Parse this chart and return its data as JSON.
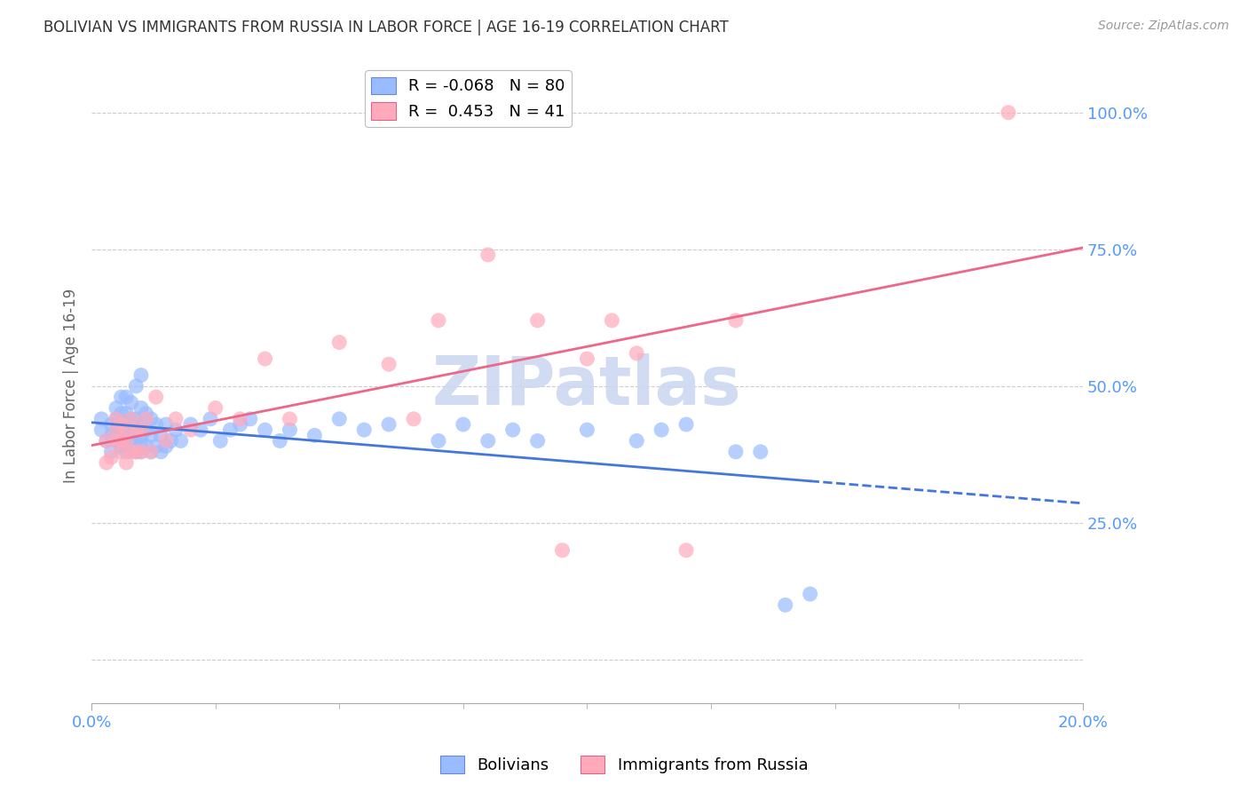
{
  "title": "BOLIVIAN VS IMMIGRANTS FROM RUSSIA IN LABOR FORCE | AGE 16-19 CORRELATION CHART",
  "source": "Source: ZipAtlas.com",
  "ylabel": "In Labor Force | Age 16-19",
  "xlabel": "",
  "xlim": [
    0.0,
    0.2
  ],
  "ylim": [
    -0.08,
    1.08
  ],
  "yticks": [
    0.0,
    0.25,
    0.5,
    0.75,
    1.0
  ],
  "ytick_labels": [
    "",
    "25.0%",
    "50.0%",
    "75.0%",
    "100.0%"
  ],
  "xticks": [
    0.0,
    0.2
  ],
  "xtick_labels": [
    "0.0%",
    "20.0%"
  ],
  "background_color": "#ffffff",
  "grid_color": "#cccccc",
  "title_color": "#333333",
  "axis_color": "#5599ff",
  "bolivians_color": "#99bbff",
  "russia_color": "#ffaabb",
  "trend_bolivia_color": "#4477dd",
  "trend_russia_color": "#ee6688",
  "watermark_color": "#ccd8f0",
  "bolivia_x": [
    0.002,
    0.002,
    0.003,
    0.004,
    0.004,
    0.004,
    0.005,
    0.005,
    0.005,
    0.005,
    0.005,
    0.006,
    0.006,
    0.006,
    0.006,
    0.006,
    0.007,
    0.007,
    0.007,
    0.007,
    0.007,
    0.007,
    0.008,
    0.008,
    0.008,
    0.008,
    0.008,
    0.009,
    0.009,
    0.009,
    0.009,
    0.009,
    0.01,
    0.01,
    0.01,
    0.01,
    0.01,
    0.01,
    0.011,
    0.011,
    0.011,
    0.012,
    0.012,
    0.012,
    0.013,
    0.013,
    0.014,
    0.014,
    0.015,
    0.015,
    0.016,
    0.017,
    0.018,
    0.02,
    0.022,
    0.024,
    0.026,
    0.028,
    0.03,
    0.032,
    0.035,
    0.038,
    0.04,
    0.045,
    0.05,
    0.055,
    0.06,
    0.07,
    0.075,
    0.08,
    0.085,
    0.09,
    0.1,
    0.11,
    0.115,
    0.12,
    0.13,
    0.135,
    0.14,
    0.145
  ],
  "bolivia_y": [
    0.42,
    0.44,
    0.4,
    0.38,
    0.41,
    0.43,
    0.4,
    0.41,
    0.42,
    0.44,
    0.46,
    0.39,
    0.41,
    0.43,
    0.45,
    0.48,
    0.38,
    0.4,
    0.41,
    0.43,
    0.45,
    0.48,
    0.39,
    0.4,
    0.42,
    0.44,
    0.47,
    0.38,
    0.4,
    0.42,
    0.44,
    0.5,
    0.38,
    0.4,
    0.41,
    0.43,
    0.46,
    0.52,
    0.39,
    0.42,
    0.45,
    0.38,
    0.41,
    0.44,
    0.39,
    0.43,
    0.38,
    0.41,
    0.39,
    0.43,
    0.4,
    0.42,
    0.4,
    0.43,
    0.42,
    0.44,
    0.4,
    0.42,
    0.43,
    0.44,
    0.42,
    0.4,
    0.42,
    0.41,
    0.44,
    0.42,
    0.43,
    0.4,
    0.43,
    0.4,
    0.42,
    0.4,
    0.42,
    0.4,
    0.42,
    0.43,
    0.38,
    0.38,
    0.1,
    0.12
  ],
  "russia_x": [
    0.003,
    0.003,
    0.004,
    0.005,
    0.005,
    0.005,
    0.006,
    0.006,
    0.006,
    0.007,
    0.007,
    0.007,
    0.008,
    0.008,
    0.009,
    0.009,
    0.01,
    0.01,
    0.011,
    0.012,
    0.013,
    0.015,
    0.017,
    0.02,
    0.025,
    0.03,
    0.035,
    0.04,
    0.05,
    0.06,
    0.065,
    0.07,
    0.08,
    0.09,
    0.095,
    0.1,
    0.105,
    0.11,
    0.12,
    0.13,
    0.185
  ],
  "russia_y": [
    0.36,
    0.4,
    0.37,
    0.4,
    0.42,
    0.44,
    0.38,
    0.4,
    0.43,
    0.36,
    0.4,
    0.42,
    0.38,
    0.44,
    0.38,
    0.42,
    0.38,
    0.42,
    0.44,
    0.38,
    0.48,
    0.4,
    0.44,
    0.42,
    0.46,
    0.44,
    0.55,
    0.44,
    0.58,
    0.54,
    0.44,
    0.62,
    0.74,
    0.62,
    0.2,
    0.55,
    0.62,
    0.56,
    0.2,
    0.62,
    1.0
  ],
  "bolivia_trend": [
    0.0,
    0.2
  ],
  "bolivia_trend_y": [
    0.42,
    0.38
  ],
  "russia_trend": [
    0.0,
    0.2
  ],
  "russia_trend_y": [
    0.28,
    0.88
  ],
  "russia_trend_solid_end": 0.145,
  "bolivia_trend_solid_end": 0.145,
  "legend_items": [
    {
      "label": "R = -0.068   N = 80",
      "color": "#99bbff",
      "edge": "#6688dd"
    },
    {
      "label": "R =  0.453   N = 41",
      "color": "#ffaabb",
      "edge": "#dd6688"
    }
  ],
  "bottom_legend": [
    {
      "label": "Bolivians",
      "color": "#99bbff",
      "edge": "#6688dd"
    },
    {
      "label": "Immigrants from Russia",
      "color": "#ffaabb",
      "edge": "#dd6688"
    }
  ]
}
